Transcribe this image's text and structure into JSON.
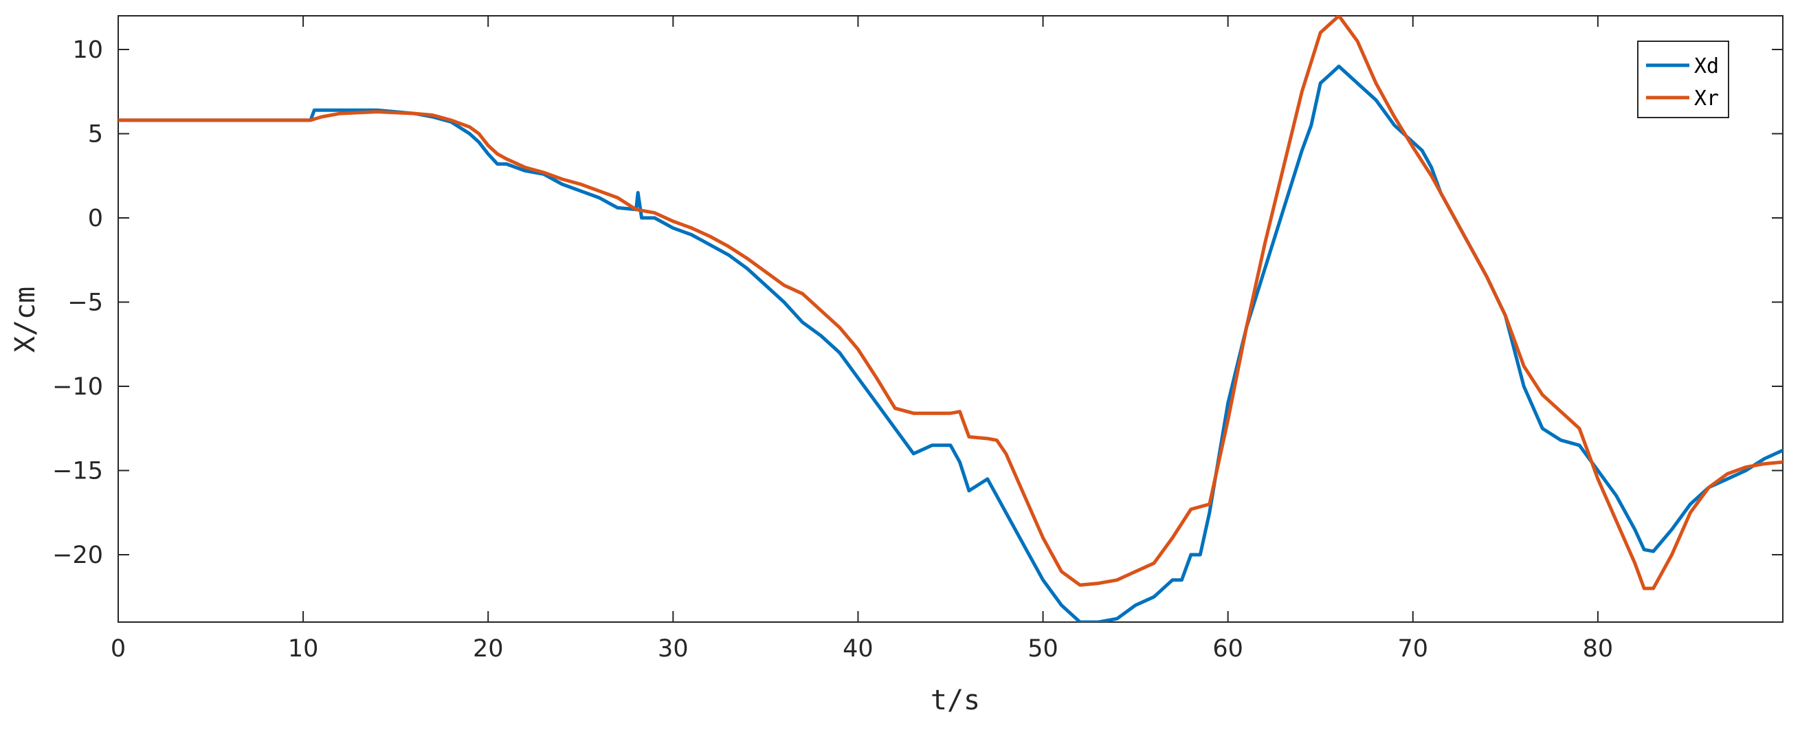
{
  "chart_data": {
    "type": "line",
    "xlabel": "t/s",
    "ylabel": "X/cm",
    "xlim": [
      0,
      90
    ],
    "ylim": [
      -24,
      12
    ],
    "xticks": [
      0,
      10,
      20,
      30,
      40,
      50,
      60,
      70,
      80
    ],
    "yticks": [
      10,
      5,
      0,
      -5,
      -10,
      -15,
      -20
    ],
    "grid": false,
    "legend_position": "top-right",
    "series": [
      {
        "name": "Xd",
        "color": "#0072BD",
        "x": [
          0,
          5,
          10.4,
          10.6,
          12,
          14,
          16,
          17,
          18,
          19,
          19.5,
          20,
          20.5,
          21,
          22,
          23,
          24,
          25,
          26,
          27,
          28,
          28.1,
          28.3,
          29,
          30,
          31,
          32,
          33,
          34,
          35,
          36,
          37,
          38,
          39,
          40,
          41,
          42,
          43,
          44,
          45,
          45.5,
          46,
          47,
          47.5,
          48,
          49,
          50,
          51,
          52,
          53,
          54,
          55,
          56,
          57,
          57.5,
          58,
          58.5,
          59,
          60,
          61,
          62,
          63,
          64,
          64.5,
          65,
          65.5,
          66,
          67,
          68,
          69,
          70,
          70.5,
          71,
          71.5,
          72,
          73,
          74,
          75,
          76,
          77,
          78,
          79,
          80,
          81,
          82,
          82.5,
          83,
          84,
          85,
          86,
          87,
          88,
          89,
          90
        ],
        "y": [
          5.8,
          5.8,
          5.8,
          6.4,
          6.4,
          6.4,
          6.2,
          6.0,
          5.7,
          5.0,
          4.5,
          3.8,
          3.2,
          3.2,
          2.8,
          2.6,
          2.0,
          1.6,
          1.2,
          0.6,
          0.5,
          1.5,
          0.0,
          0.0,
          -0.6,
          -1.0,
          -1.6,
          -2.2,
          -3.0,
          -4.0,
          -5.0,
          -6.2,
          -7.0,
          -8.0,
          -9.5,
          -11.0,
          -12.5,
          -14.0,
          -13.5,
          -13.5,
          -14.5,
          -16.2,
          -15.5,
          -16.5,
          -17.5,
          -19.5,
          -21.5,
          -23.0,
          -24.0,
          -24.0,
          -23.8,
          -23.0,
          -22.5,
          -21.5,
          -21.5,
          -20.0,
          -20.0,
          -17.5,
          -11.0,
          -6.5,
          -3.0,
          0.5,
          4.0,
          5.5,
          8.0,
          8.5,
          9.0,
          8.0,
          7.0,
          5.5,
          4.5,
          4.0,
          3.0,
          1.5,
          0.5,
          -1.5,
          -3.5,
          -5.8,
          -10.0,
          -12.5,
          -13.2,
          -13.5,
          -15.0,
          -16.5,
          -18.5,
          -19.7,
          -19.8,
          -18.5,
          -17.0,
          -16.0,
          -15.5,
          -15.0,
          -14.3,
          -13.8
        ]
      },
      {
        "name": "Xr",
        "color": "#D95319",
        "x": [
          0,
          5,
          10.4,
          11,
          12,
          14,
          16,
          17,
          18,
          19,
          19.5,
          20,
          20.5,
          21,
          22,
          23,
          24,
          25,
          26,
          27,
          28,
          29,
          30,
          31,
          32,
          33,
          34,
          35,
          36,
          37,
          38,
          39,
          40,
          41,
          42,
          43,
          44,
          45,
          45.5,
          46,
          47,
          47.5,
          48,
          49,
          50,
          51,
          52,
          53,
          54,
          55,
          56,
          57,
          58,
          59,
          60,
          61,
          62,
          63,
          64,
          65,
          66,
          67,
          68,
          69,
          70,
          71,
          72,
          73,
          74,
          75,
          76,
          77,
          78,
          79,
          80,
          81,
          82,
          82.5,
          83,
          84,
          85,
          86,
          87,
          88,
          89,
          90
        ],
        "y": [
          5.8,
          5.8,
          5.8,
          6.0,
          6.2,
          6.3,
          6.2,
          6.1,
          5.8,
          5.4,
          5.0,
          4.3,
          3.8,
          3.5,
          3.0,
          2.7,
          2.3,
          2.0,
          1.6,
          1.2,
          0.5,
          0.3,
          -0.2,
          -0.6,
          -1.1,
          -1.7,
          -2.4,
          -3.2,
          -4.0,
          -4.5,
          -5.5,
          -6.5,
          -7.8,
          -9.5,
          -11.3,
          -11.6,
          -11.6,
          -11.6,
          -11.5,
          -13.0,
          -13.1,
          -13.2,
          -14.0,
          -16.5,
          -19.0,
          -21.0,
          -21.8,
          -21.7,
          -21.5,
          -21.0,
          -20.5,
          -19.0,
          -17.3,
          -17.0,
          -12.0,
          -6.5,
          -1.5,
          3.0,
          7.5,
          11.0,
          12.0,
          10.5,
          8.0,
          6.0,
          4.2,
          2.5,
          0.5,
          -1.5,
          -3.5,
          -5.8,
          -8.8,
          -10.5,
          -11.5,
          -12.5,
          -15.5,
          -18.0,
          -20.5,
          -22.0,
          -22.0,
          -20.0,
          -17.5,
          -16.0,
          -15.2,
          -14.8,
          -14.6,
          -14.5
        ]
      }
    ]
  }
}
